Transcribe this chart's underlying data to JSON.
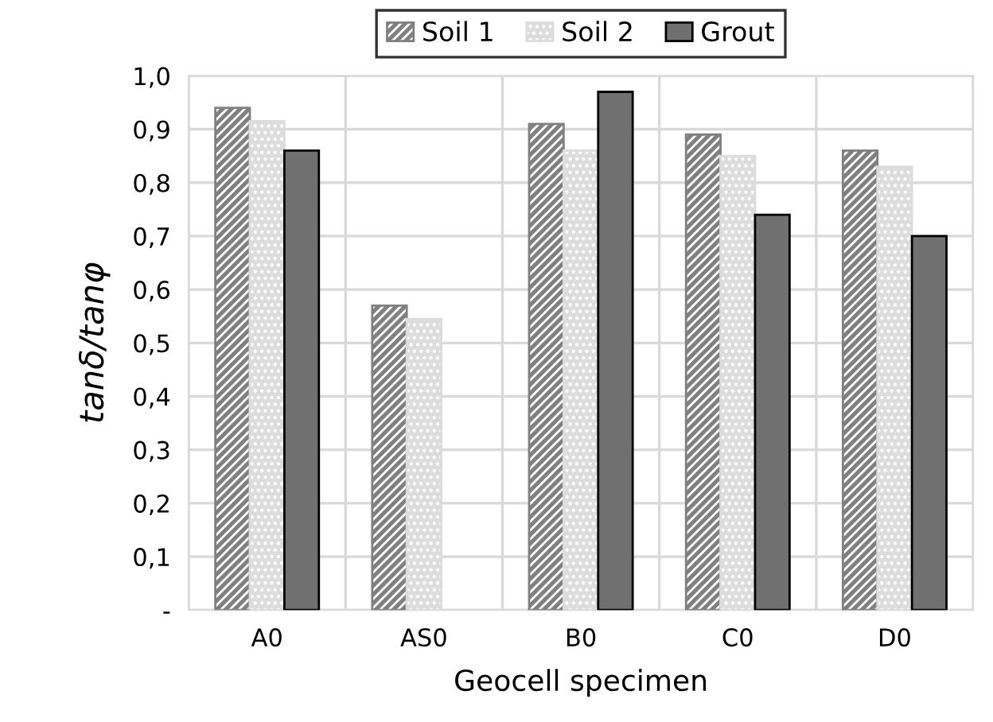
{
  "chart_data": {
    "type": "bar",
    "xlabel": "Geocell specimen",
    "ylabel": "tanδ/tanφ",
    "categories": [
      "A0",
      "AS0",
      "B0",
      "C0",
      "D0"
    ],
    "series": [
      {
        "name": "Soil 1",
        "color": "#808080",
        "values": [
          0.94,
          0.57,
          0.91,
          0.89,
          0.86
        ]
      },
      {
        "name": "Soil 2",
        "color": "#dcdcdc",
        "values": [
          0.915,
          0.545,
          0.86,
          0.85,
          0.83
        ]
      },
      {
        "name": "Grout",
        "color": "#707070",
        "values": [
          0.86,
          null,
          0.97,
          0.74,
          0.7
        ]
      }
    ],
    "ylim": [
      0,
      1.0
    ],
    "yticks": [
      {
        "value": 0,
        "label": "-"
      },
      {
        "value": 0.1,
        "label": "0,1"
      },
      {
        "value": 0.2,
        "label": "0,2"
      },
      {
        "value": 0.3,
        "label": "0,3"
      },
      {
        "value": 0.4,
        "label": "0,4"
      },
      {
        "value": 0.5,
        "label": "0,5"
      },
      {
        "value": 0.6,
        "label": "0,6"
      },
      {
        "value": 0.7,
        "label": "0,7"
      },
      {
        "value": 0.8,
        "label": "0,8"
      },
      {
        "value": 0.9,
        "label": "0,9"
      },
      {
        "value": 1.0,
        "label": "1,0"
      }
    ],
    "grid": true,
    "legend": "top"
  }
}
